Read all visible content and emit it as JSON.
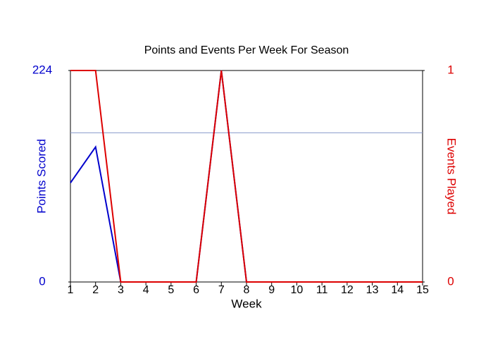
{
  "chart_data": {
    "type": "line",
    "title": "Points and Events Per Week For Season",
    "x_label": "Week",
    "y_label": "Points Scored",
    "y2_label": "Events Played",
    "x": [
      1,
      2,
      3,
      4,
      5,
      6,
      7,
      8,
      9,
      10,
      11,
      12,
      13,
      14,
      15
    ],
    "xlim": [
      1,
      15
    ],
    "xticks": [
      1,
      2,
      3,
      4,
      5,
      6,
      7,
      8,
      9,
      10,
      11,
      12,
      13,
      14,
      15
    ],
    "ylim": [
      0,
      224
    ],
    "yticks": [
      0,
      224
    ],
    "y_color": "#0000cc",
    "y2lim": [
      0,
      1
    ],
    "y2ticks": [
      0,
      1
    ],
    "y2_color": "#dd0000",
    "reference_line": {
      "value": 158,
      "color": "#8899cc"
    },
    "series": [
      {
        "name": "Points Scored",
        "color": "#0000cc",
        "values": [
          105,
          143,
          0,
          0,
          0,
          0,
          224,
          0,
          0,
          0,
          0,
          0,
          0,
          0,
          0
        ]
      },
      {
        "name": "Events Played",
        "color": "#dd0000",
        "axis": "y2",
        "values": [
          1,
          1,
          0,
          0,
          0,
          0,
          1,
          0,
          0,
          0,
          0,
          0,
          0,
          0,
          0
        ]
      }
    ]
  }
}
